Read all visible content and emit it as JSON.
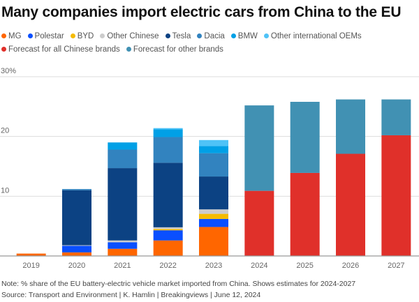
{
  "chart_data": {
    "type": "bar",
    "stacked": true,
    "title": "Many companies import electric cars from China to the EU",
    "xlabel": "",
    "ylabel": "",
    "ylim": [
      0,
      30
    ],
    "yticks": [
      {
        "value": 10,
        "label": "10"
      },
      {
        "value": 20,
        "label": "20"
      },
      {
        "value": 30,
        "label": "30%"
      }
    ],
    "grid": true,
    "legend_position": "top",
    "categories": [
      "2019",
      "2020",
      "2021",
      "2022",
      "2023",
      "2024",
      "2025",
      "2026",
      "2027"
    ],
    "series": [
      {
        "name": "MG",
        "color": "#ff6600",
        "values": [
          0.4,
          0.6,
          1.2,
          2.6,
          4.85,
          0,
          0,
          0,
          0
        ]
      },
      {
        "name": "Polestar",
        "color": "#0a4fff",
        "values": [
          0,
          1.1,
          1.1,
          1.7,
          1.35,
          0,
          0,
          0,
          0
        ]
      },
      {
        "name": "BYD",
        "color": "#f5bb00",
        "values": [
          0,
          0,
          0,
          0.2,
          0.85,
          0,
          0,
          0,
          0
        ]
      },
      {
        "name": "Other Chinese",
        "color": "#cccccc",
        "values": [
          0,
          0.1,
          0.3,
          0.3,
          0.75,
          0,
          0,
          0,
          0
        ]
      },
      {
        "name": "Tesla",
        "color": "#0c4283",
        "values": [
          0,
          9.2,
          12.1,
          10.8,
          5.5,
          0,
          0,
          0,
          0
        ]
      },
      {
        "name": "Dacia",
        "color": "#3283bf",
        "values": [
          0,
          0.2,
          3.1,
          4.3,
          3.9,
          0,
          0,
          0,
          0
        ]
      },
      {
        "name": "BMW",
        "color": "#00a0e6",
        "values": [
          0,
          0,
          1.2,
          1.3,
          1.2,
          0,
          0,
          0,
          0
        ]
      },
      {
        "name": "Other international OEMs",
        "color": "#4fc3f7",
        "values": [
          0,
          0,
          0,
          0.2,
          1.0,
          0,
          0,
          0,
          0
        ]
      },
      {
        "name": "Forecast for all Chinese brands",
        "color": "#e0302a",
        "values": [
          0,
          0,
          0,
          0,
          0,
          10.9,
          13.9,
          17.1,
          20.2
        ]
      },
      {
        "name": "Forecast for other brands",
        "color": "#4191b3",
        "values": [
          0,
          0,
          0,
          0,
          0,
          14.3,
          11.9,
          9.1,
          6.0
        ]
      }
    ],
    "note": "Note: % share of the EU battery-electric vehicle market imported from China. Shows estimates for 2024-2027",
    "source": "Source: Transport and Environment | K. Hamlin | Breakingviews | June 12, 2024"
  }
}
